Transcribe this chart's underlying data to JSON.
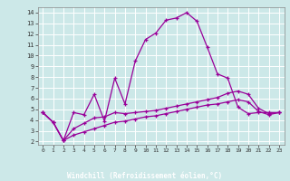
{
  "title": "",
  "xlabel": "Windchill (Refroidissement éolien,°C)",
  "bg_color": "#cce8e8",
  "grid_color": "#ffffff",
  "line_color": "#990099",
  "x_values": [
    0,
    1,
    2,
    3,
    4,
    5,
    6,
    7,
    8,
    9,
    10,
    11,
    12,
    13,
    14,
    15,
    16,
    17,
    18,
    19,
    20,
    21,
    22,
    23
  ],
  "line1_y": [
    4.7,
    3.8,
    2.1,
    4.7,
    4.5,
    6.4,
    3.9,
    7.9,
    5.5,
    9.5,
    11.5,
    12.1,
    13.3,
    13.5,
    14.0,
    13.2,
    10.8,
    8.3,
    7.9,
    5.2,
    4.6,
    4.7,
    4.7,
    4.7
  ],
  "line2_y": [
    4.7,
    3.8,
    2.1,
    3.2,
    3.7,
    4.2,
    4.3,
    4.7,
    4.6,
    4.7,
    4.8,
    4.9,
    5.1,
    5.3,
    5.5,
    5.7,
    5.9,
    6.1,
    6.5,
    6.7,
    6.4,
    5.1,
    4.6,
    4.7
  ],
  "line3_y": [
    4.7,
    3.8,
    2.1,
    2.6,
    2.9,
    3.2,
    3.5,
    3.8,
    3.9,
    4.1,
    4.3,
    4.4,
    4.6,
    4.8,
    5.0,
    5.2,
    5.4,
    5.5,
    5.7,
    5.9,
    5.7,
    4.8,
    4.5,
    4.7
  ],
  "xlim_min": -0.5,
  "xlim_max": 23.5,
  "ylim_min": 1.7,
  "ylim_max": 14.5,
  "yticks": [
    2,
    3,
    4,
    5,
    6,
    7,
    8,
    9,
    10,
    11,
    12,
    13,
    14
  ],
  "xticks": [
    0,
    1,
    2,
    3,
    4,
    5,
    6,
    7,
    8,
    9,
    10,
    11,
    12,
    13,
    14,
    15,
    16,
    17,
    18,
    19,
    20,
    21,
    22,
    23
  ],
  "bottom_bar_color": "#660066",
  "tick_color": "#333333",
  "spine_color": "#888888"
}
